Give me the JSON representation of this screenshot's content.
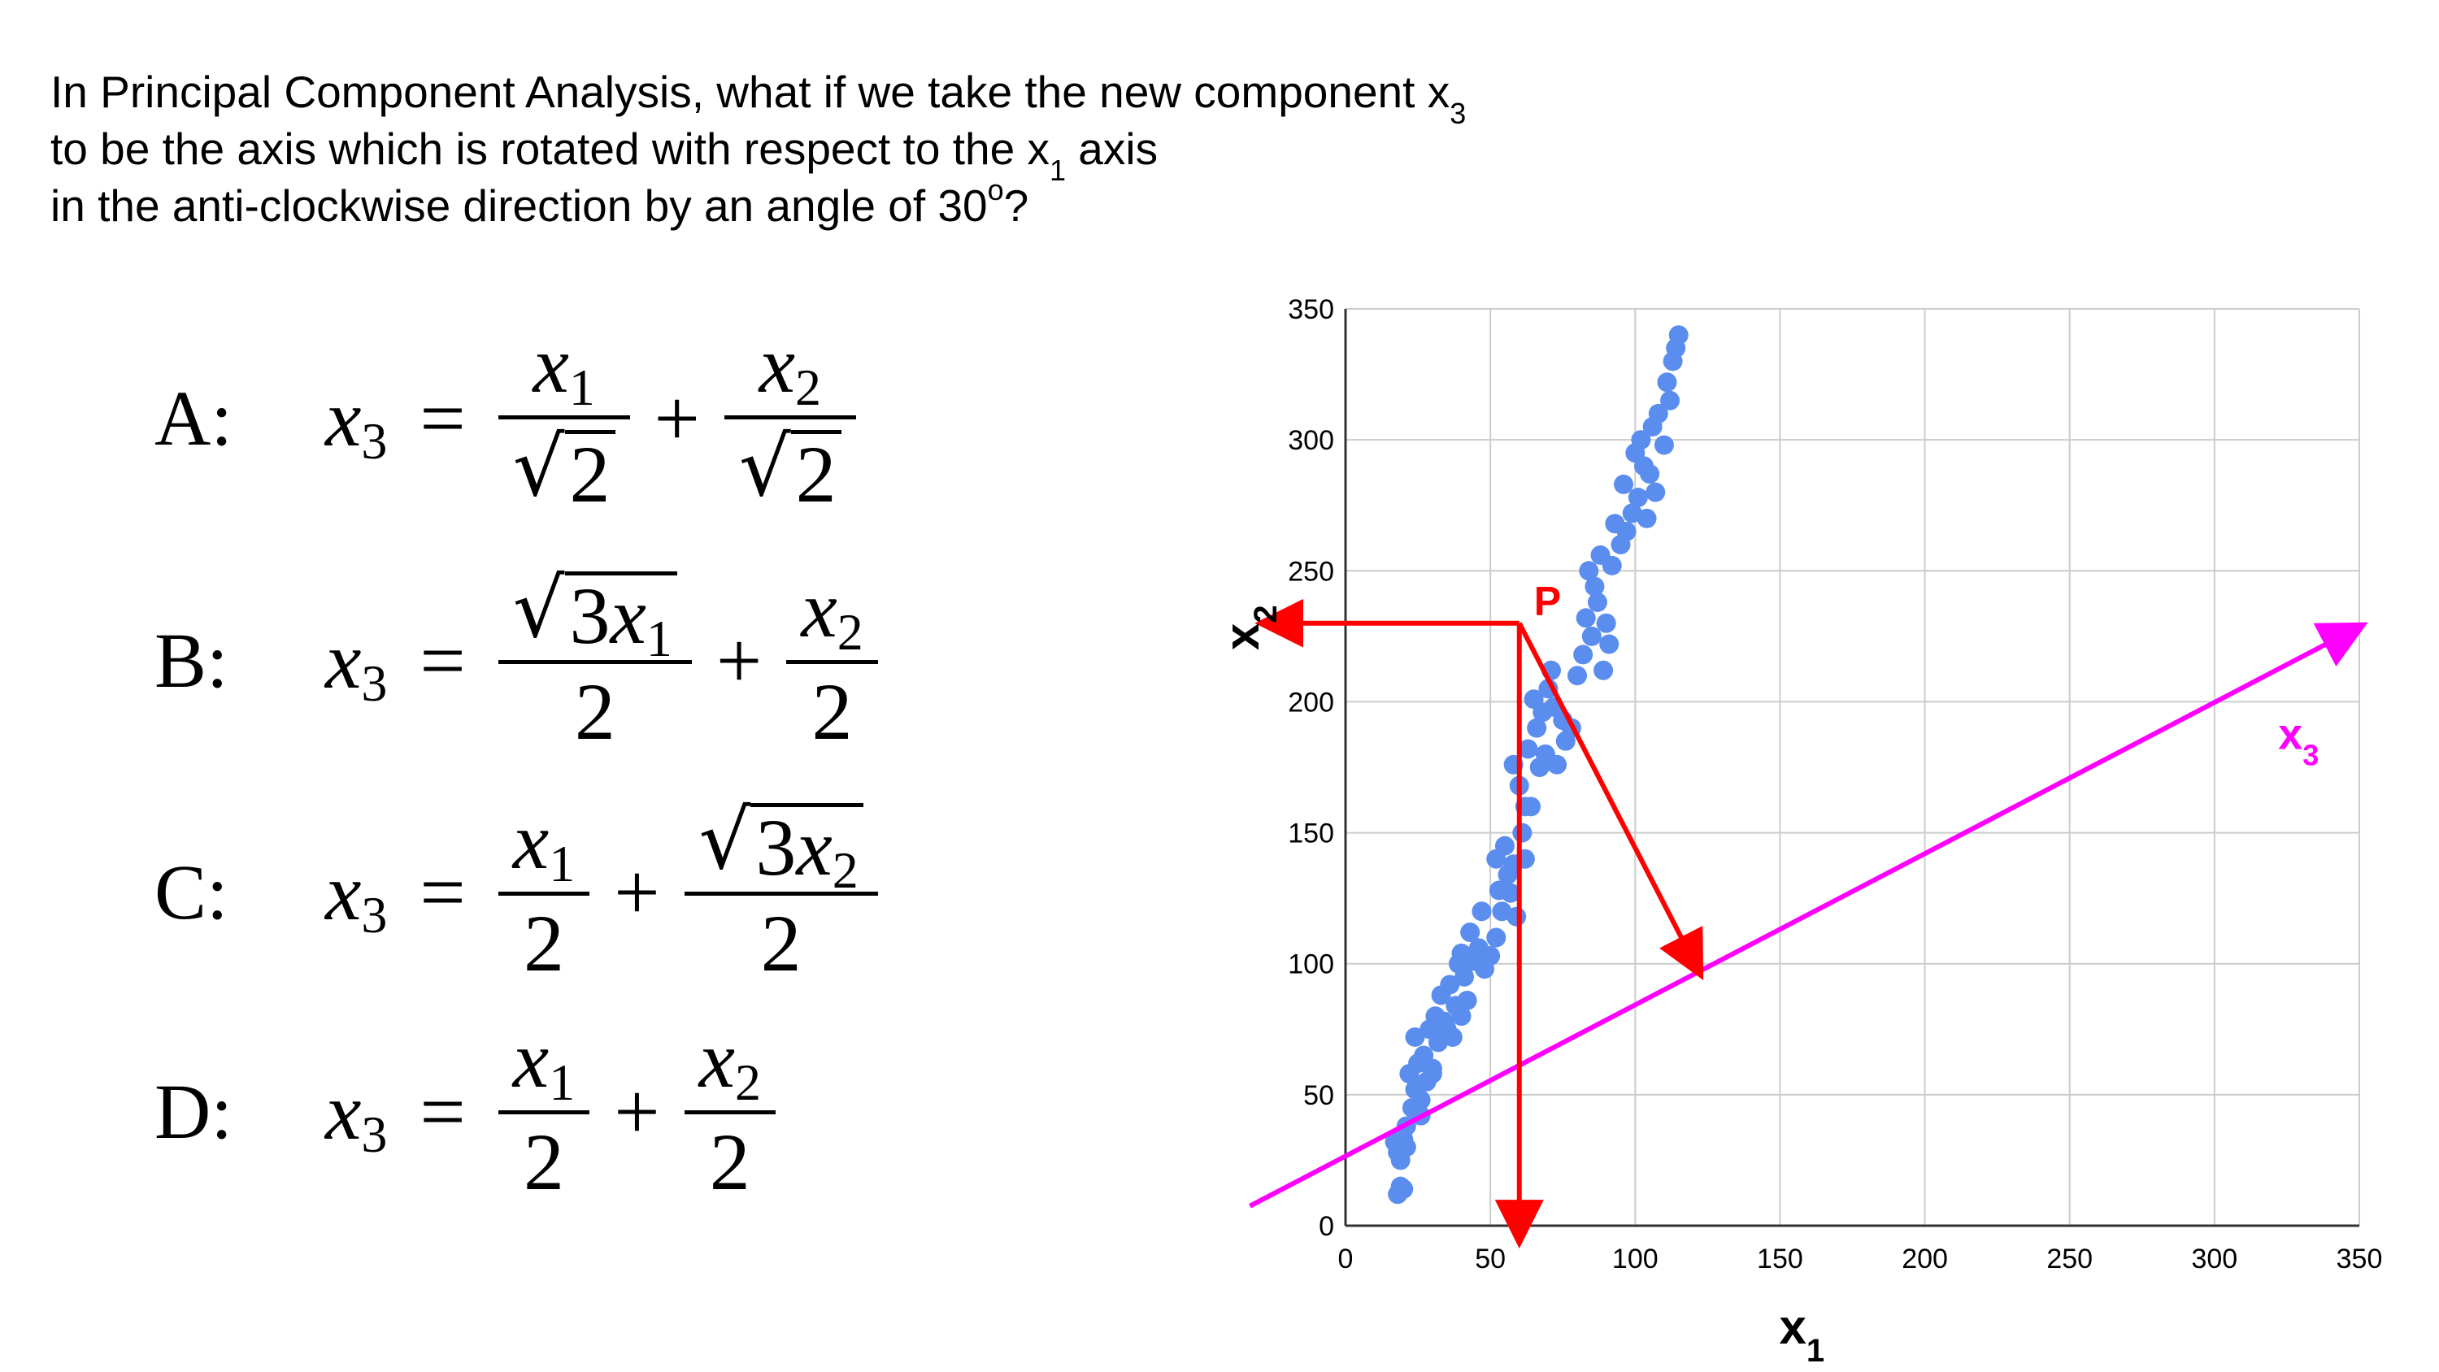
{
  "question": {
    "line1": {
      "text": "In Principal Component Analysis, what if we take the new component x",
      "sub": "3"
    },
    "line2": {
      "before": "to be the axis which is rotated with respect to the x",
      "sub": "1",
      "after": " axis"
    },
    "line3": {
      "text": "in the anti-clockwise direction by an angle of 30",
      "sup": "o",
      "after": "?"
    }
  },
  "options": [
    {
      "label": "A:",
      "lhs": "x",
      "lhs_sub": "3",
      "eq": "=",
      "plus": "+",
      "t1": {
        "num": "x",
        "num_sub": "1",
        "num_sqrt": "",
        "den_sqrt": "2",
        "den": ""
      },
      "t2": {
        "num": "x",
        "num_sub": "2",
        "num_sqrt": "",
        "den_sqrt": "2",
        "den": ""
      }
    },
    {
      "label": "B:",
      "lhs": "x",
      "lhs_sub": "3",
      "eq": "=",
      "plus": "+",
      "t1": {
        "num": "x",
        "num_sub": "1",
        "num_sqrt": "3",
        "den": "2"
      },
      "t2": {
        "num": "x",
        "num_sub": "2",
        "den": "2"
      }
    },
    {
      "label": "C:",
      "lhs": "x",
      "lhs_sub": "3",
      "eq": "=",
      "plus": "+",
      "t1": {
        "num": "x",
        "num_sub": "1",
        "den": "2"
      },
      "t2": {
        "num": "x",
        "num_sub": "2",
        "num_sqrt": "3",
        "den": "2"
      }
    },
    {
      "label": "D:",
      "lhs": "x",
      "lhs_sub": "3",
      "eq": "=",
      "plus": "+",
      "t1": {
        "num": "x",
        "num_sub": "1",
        "den": "2"
      },
      "t2": {
        "num": "x",
        "num_sub": "2",
        "den": "2"
      }
    }
  ],
  "chart_data": {
    "type": "scatter",
    "xlabel": "x",
    "xlabel_sub": "1",
    "ylabel": "x",
    "ylabel_sub": "2",
    "xlim": [
      0,
      350
    ],
    "ylim": [
      0,
      350
    ],
    "xticks": [
      "0",
      "50",
      "100",
      "150",
      "200",
      "250",
      "300",
      "350"
    ],
    "yticks": [
      "0",
      "50",
      "100",
      "150",
      "200",
      "250",
      "300",
      "350"
    ],
    "grid": true,
    "colors": {
      "points": "#5b8def",
      "arrows": "#ff0000",
      "component_axis": "#ff00ff",
      "grid": "#cccccc"
    },
    "points": [
      [
        18,
        12
      ],
      [
        19,
        15
      ],
      [
        20,
        14
      ],
      [
        17,
        32
      ],
      [
        18,
        28
      ],
      [
        20,
        33
      ],
      [
        21,
        30
      ],
      [
        19,
        25
      ],
      [
        23,
        45
      ],
      [
        24,
        52
      ],
      [
        26,
        48
      ],
      [
        22,
        58
      ],
      [
        25,
        62
      ],
      [
        28,
        55
      ],
      [
        30,
        60
      ],
      [
        27,
        65
      ],
      [
        24,
        72
      ],
      [
        29,
        75
      ],
      [
        31,
        80
      ],
      [
        34,
        78
      ],
      [
        33,
        88
      ],
      [
        36,
        92
      ],
      [
        38,
        84
      ],
      [
        40,
        80
      ],
      [
        35,
        75
      ],
      [
        37,
        72
      ],
      [
        42,
        86
      ],
      [
        41,
        95
      ],
      [
        44,
        101
      ],
      [
        46,
        106
      ],
      [
        43,
        112
      ],
      [
        40,
        104
      ],
      [
        48,
        98
      ],
      [
        50,
        103
      ],
      [
        52,
        110
      ],
      [
        54,
        120
      ],
      [
        53,
        128
      ],
      [
        56,
        134
      ],
      [
        52,
        140
      ],
      [
        55,
        145
      ],
      [
        58,
        138
      ],
      [
        57,
        127
      ],
      [
        59,
        118
      ],
      [
        61,
        150
      ],
      [
        62,
        160
      ],
      [
        60,
        168
      ],
      [
        58,
        176
      ],
      [
        63,
        182
      ],
      [
        66,
        190
      ],
      [
        68,
        196
      ],
      [
        65,
        201
      ],
      [
        70,
        205
      ],
      [
        72,
        198
      ],
      [
        75,
        193
      ],
      [
        69,
        180
      ],
      [
        73,
        176
      ],
      [
        76,
        185
      ],
      [
        80,
        210
      ],
      [
        82,
        218
      ],
      [
        85,
        225
      ],
      [
        83,
        232
      ],
      [
        87,
        238
      ],
      [
        90,
        230
      ],
      [
        86,
        244
      ],
      [
        84,
        250
      ],
      [
        88,
        256
      ],
      [
        92,
        252
      ],
      [
        95,
        260
      ],
      [
        93,
        268
      ],
      [
        97,
        265
      ],
      [
        99,
        272
      ],
      [
        101,
        278
      ],
      [
        96,
        283
      ],
      [
        103,
        290
      ],
      [
        100,
        295
      ],
      [
        105,
        287
      ],
      [
        107,
        280
      ],
      [
        102,
        300
      ],
      [
        106,
        305
      ],
      [
        110,
        298
      ],
      [
        108,
        310
      ],
      [
        112,
        315
      ],
      [
        111,
        322
      ],
      [
        113,
        330
      ],
      [
        115,
        340
      ],
      [
        114,
        335
      ],
      [
        104,
        270
      ],
      [
        91,
        222
      ],
      [
        89,
        212
      ],
      [
        78,
        190
      ],
      [
        71,
        212
      ],
      [
        67,
        175
      ],
      [
        64,
        160
      ],
      [
        62,
        140
      ],
      [
        47,
        120
      ],
      [
        39,
        100
      ],
      [
        32,
        70
      ],
      [
        30,
        58
      ],
      [
        26,
        42
      ],
      [
        21,
        38
      ]
    ],
    "labels": [
      {
        "text": "P"
      },
      {
        "text": "x",
        "sub": "3"
      }
    ],
    "geometry_data": {
      "point_P": [
        60,
        230
      ],
      "projection_x1": 60,
      "projection_x2": 230,
      "projection_on_x3": [
        122,
        97
      ],
      "x3_angle_deg": 30
    }
  }
}
